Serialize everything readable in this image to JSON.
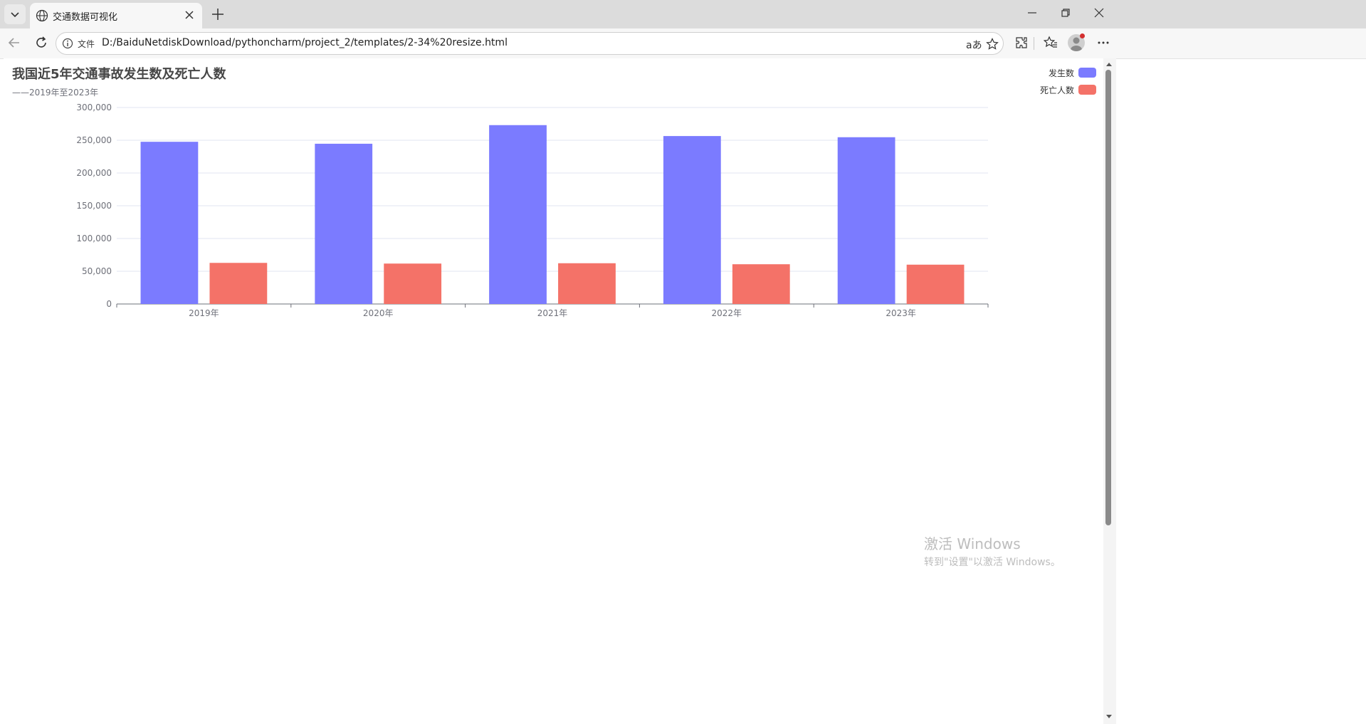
{
  "browser": {
    "tab_title": "交通数据可视化",
    "address_label": "文件",
    "url": "D:/BaiduNetdiskDownload/pythoncharm/project_2/templates/2-34%20resize.html"
  },
  "page": {
    "title": "我国近5年交通事故发生数及死亡人数",
    "subtitle": "——2019年至2023年",
    "legend": [
      {
        "name": "发生数",
        "color": "#7b7bff"
      },
      {
        "name": "死亡人数",
        "color": "#f47268"
      }
    ]
  },
  "chart_data": {
    "type": "bar",
    "categories": [
      "2019年",
      "2020年",
      "2021年",
      "2022年",
      "2023年"
    ],
    "series": [
      {
        "name": "发生数",
        "color": "#7b7bff",
        "values": [
          247646,
          244674,
          273098,
          256409,
          254609
        ]
      },
      {
        "name": "死亡人数",
        "color": "#f47268",
        "values": [
          62763,
          61703,
          62218,
          60676,
          60028
        ]
      }
    ],
    "yticks": [
      "0",
      "50,000",
      "100,000",
      "150,000",
      "200,000",
      "250,000",
      "300,000"
    ],
    "ylim": [
      0,
      300000
    ],
    "grid": true,
    "legend_position": "top-right"
  },
  "watermark": {
    "line1": "激活 Windows",
    "line2": "转到\"设置\"以激活 Windows。"
  }
}
